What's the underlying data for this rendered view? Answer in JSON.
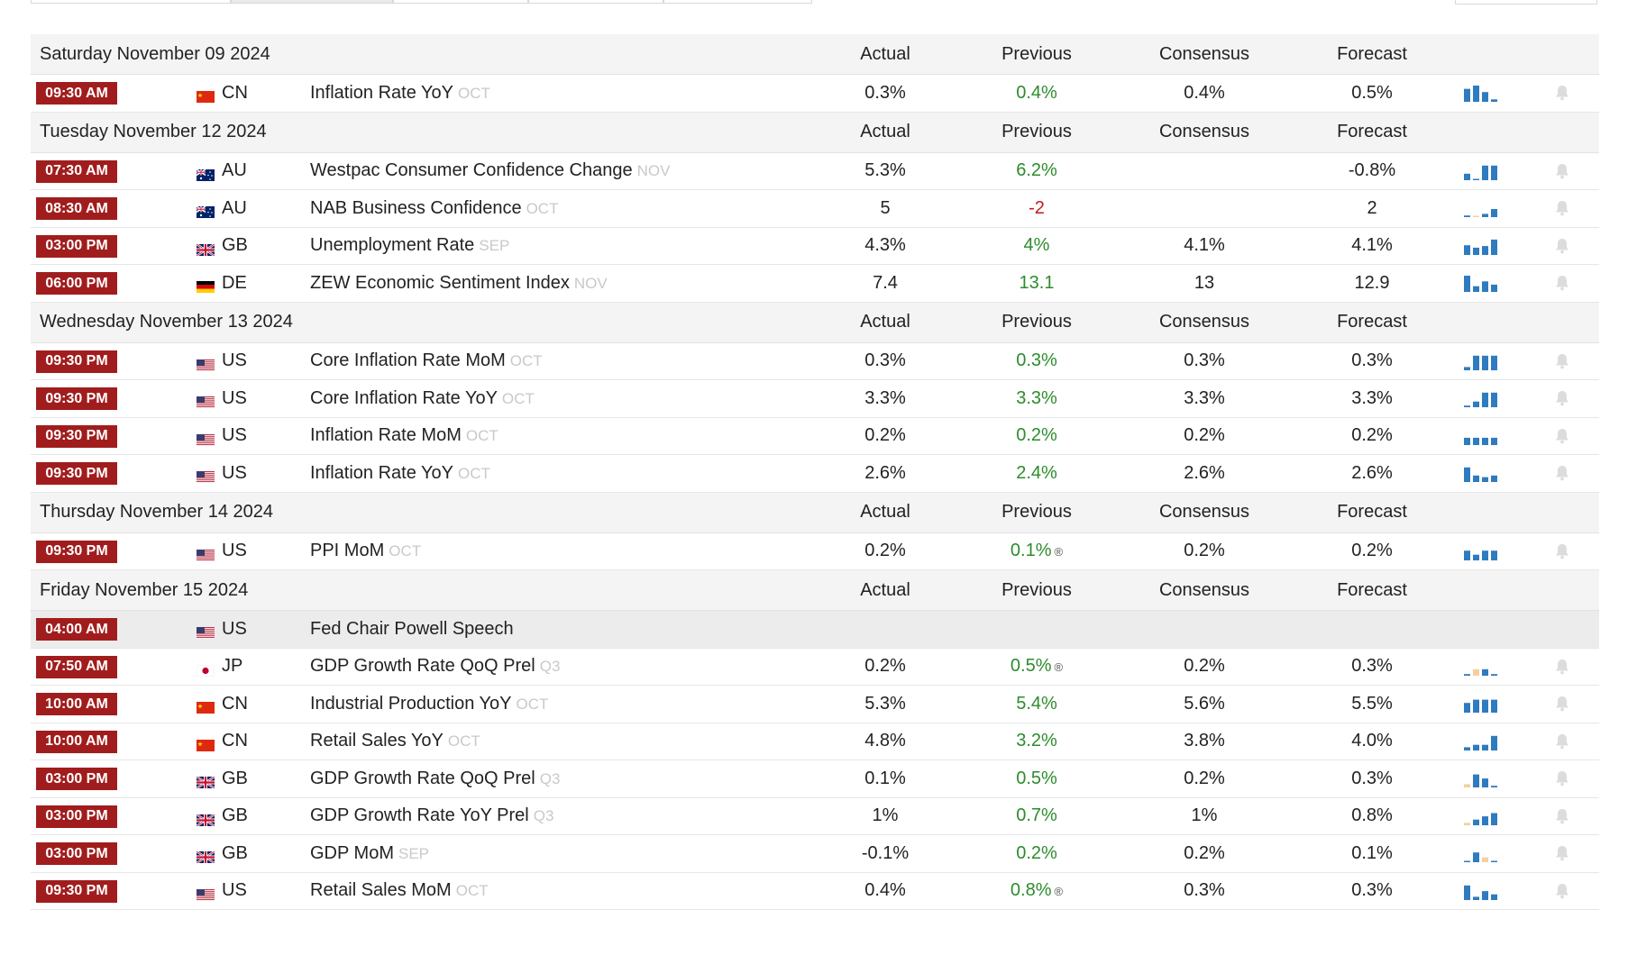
{
  "columns": {
    "actual": "Actual",
    "previous": "Previous",
    "consensus": "Consensus",
    "forecast": "Forecast"
  },
  "colors": {
    "time_badge": "#a11d1d",
    "positive": "#2c8c2c",
    "negative": "#c21b1b",
    "bar_blue": "#2f7bbf",
    "bar_light": "#f5cfa0"
  },
  "days": [
    {
      "date": "Saturday November 09 2024",
      "events": [
        {
          "time": "09:30 AM",
          "flag": "cn",
          "country": "CN",
          "event": "Inflation Rate YoY",
          "ref": "OCT",
          "actual": "0.3%",
          "previous": "0.4%",
          "prev_color": "green",
          "consensus": "0.4%",
          "forecast": "0.5%",
          "spark": [
            0.8,
            1.0,
            0.6,
            0.15
          ],
          "spark_neg": []
        }
      ]
    },
    {
      "date": "Tuesday November 12 2024",
      "events": [
        {
          "time": "07:30 AM",
          "flag": "au",
          "country": "AU",
          "event": "Westpac Consumer Confidence Change",
          "ref": "NOV",
          "actual": "5.3%",
          "previous": "6.2%",
          "prev_color": "green",
          "consensus": "",
          "forecast": "-0.8%",
          "spark": [
            0.4,
            0,
            0.9,
            0.9
          ],
          "spark_neg": []
        },
        {
          "time": "08:30 AM",
          "flag": "au",
          "country": "AU",
          "event": "NAB Business Confidence",
          "ref": "OCT",
          "actual": "5",
          "previous": "-2",
          "prev_color": "red",
          "consensus": "",
          "forecast": "2",
          "spark": [
            0.1,
            0,
            0.2,
            0.5
          ],
          "spark_neg": [
            1
          ]
        },
        {
          "time": "03:00 PM",
          "flag": "gb",
          "country": "GB",
          "event": "Unemployment Rate",
          "ref": "SEP",
          "actual": "4.3%",
          "previous": "4%",
          "prev_color": "green",
          "consensus": "4.1%",
          "forecast": "4.1%",
          "spark": [
            0.6,
            0.45,
            0.55,
            0.95
          ],
          "spark_neg": []
        },
        {
          "time": "06:00 PM",
          "flag": "de",
          "country": "DE",
          "event": "ZEW Economic Sentiment Index",
          "ref": "NOV",
          "actual": "7.4",
          "previous": "13.1",
          "prev_color": "green",
          "consensus": "13",
          "forecast": "12.9",
          "spark": [
            1.0,
            0.35,
            0.65,
            0.45
          ],
          "spark_neg": []
        }
      ]
    },
    {
      "date": "Wednesday November 13 2024",
      "events": [
        {
          "time": "09:30 PM",
          "flag": "us",
          "country": "US",
          "event": "Core Inflation Rate MoM",
          "ref": "OCT",
          "actual": "0.3%",
          "previous": "0.3%",
          "prev_color": "green",
          "consensus": "0.3%",
          "forecast": "0.3%",
          "spark": [
            0.2,
            0.9,
            0.9,
            0.9
          ],
          "spark_neg": []
        },
        {
          "time": "09:30 PM",
          "flag": "us",
          "country": "US",
          "event": "Core Inflation Rate YoY",
          "ref": "OCT",
          "actual": "3.3%",
          "previous": "3.3%",
          "prev_color": "green",
          "consensus": "3.3%",
          "forecast": "3.3%",
          "spark": [
            0.1,
            0.35,
            0.9,
            0.9
          ],
          "spark_neg": []
        },
        {
          "time": "09:30 PM",
          "flag": "us",
          "country": "US",
          "event": "Inflation Rate MoM",
          "ref": "OCT",
          "actual": "0.2%",
          "previous": "0.2%",
          "prev_color": "green",
          "consensus": "0.2%",
          "forecast": "0.2%",
          "spark": [
            0.45,
            0.45,
            0.45,
            0.45
          ],
          "spark_neg": []
        },
        {
          "time": "09:30 PM",
          "flag": "us",
          "country": "US",
          "event": "Inflation Rate YoY",
          "ref": "OCT",
          "actual": "2.6%",
          "previous": "2.4%",
          "prev_color": "green",
          "consensus": "2.6%",
          "forecast": "2.6%",
          "spark": [
            0.9,
            0.4,
            0.3,
            0.4
          ],
          "spark_neg": []
        }
      ]
    },
    {
      "date": "Thursday November 14 2024",
      "events": [
        {
          "time": "09:30 PM",
          "flag": "us",
          "country": "US",
          "event": "PPI MoM",
          "ref": "OCT",
          "actual": "0.2%",
          "previous": "0.1%",
          "prev_color": "green",
          "revised": true,
          "consensus": "0.2%",
          "forecast": "0.2%",
          "spark": [
            0.6,
            0.35,
            0.6,
            0.6
          ],
          "spark_neg": []
        }
      ]
    },
    {
      "date": "Friday November 15 2024",
      "events": [
        {
          "time": "04:00 AM",
          "flag": "us",
          "country": "US",
          "event": "Fed Chair Powell Speech",
          "ref": "",
          "actual": "",
          "previous": "",
          "prev_color": "green",
          "consensus": "",
          "forecast": "",
          "speech": true,
          "spark": [],
          "spark_neg": []
        },
        {
          "time": "07:50 AM",
          "flag": "jp",
          "country": "JP",
          "event": "GDP Growth Rate QoQ Prel",
          "ref": "Q3",
          "actual": "0.2%",
          "previous": "0.5%",
          "prev_color": "green",
          "revised": true,
          "consensus": "0.2%",
          "forecast": "0.3%",
          "spark": [
            0.1,
            0.4,
            0.4,
            0.1
          ],
          "spark_neg": [
            1
          ]
        },
        {
          "time": "10:00 AM",
          "flag": "cn",
          "country": "CN",
          "event": "Industrial Production YoY",
          "ref": "OCT",
          "actual": "5.3%",
          "previous": "5.4%",
          "prev_color": "green",
          "consensus": "5.6%",
          "forecast": "5.5%",
          "spark": [
            0.6,
            0.8,
            0.8,
            0.8
          ],
          "spark_neg": []
        },
        {
          "time": "10:00 AM",
          "flag": "cn",
          "country": "CN",
          "event": "Retail Sales YoY",
          "ref": "OCT",
          "actual": "4.8%",
          "previous": "3.2%",
          "prev_color": "green",
          "consensus": "3.8%",
          "forecast": "4.0%",
          "spark": [
            0.2,
            0.35,
            0.35,
            0.9
          ],
          "spark_neg": []
        },
        {
          "time": "03:00 PM",
          "flag": "gb",
          "country": "GB",
          "event": "GDP Growth Rate QoQ Prel",
          "ref": "Q3",
          "actual": "0.1%",
          "previous": "0.5%",
          "prev_color": "green",
          "consensus": "0.2%",
          "forecast": "0.3%",
          "spark": [
            0.2,
            0.8,
            0.55,
            0.1
          ],
          "spark_neg": [
            0
          ]
        },
        {
          "time": "03:00 PM",
          "flag": "gb",
          "country": "GB",
          "event": "GDP Growth Rate YoY Prel",
          "ref": "Q3",
          "actual": "1%",
          "previous": "0.7%",
          "prev_color": "green",
          "consensus": "1%",
          "forecast": "0.8%",
          "spark": [
            0.15,
            0.35,
            0.55,
            0.75
          ],
          "spark_neg": [
            0
          ]
        },
        {
          "time": "03:00 PM",
          "flag": "gb",
          "country": "GB",
          "event": "GDP MoM",
          "ref": "SEP",
          "actual": "-0.1%",
          "previous": "0.2%",
          "prev_color": "green",
          "consensus": "0.2%",
          "forecast": "0.1%",
          "spark": [
            0,
            0.6,
            0.3,
            0
          ],
          "spark_neg": [
            2
          ]
        },
        {
          "time": "09:30 PM",
          "flag": "us",
          "country": "US",
          "event": "Retail Sales MoM",
          "ref": "OCT",
          "actual": "0.4%",
          "previous": "0.8%",
          "prev_color": "green",
          "revised": true,
          "consensus": "0.3%",
          "forecast": "0.3%",
          "spark": [
            0.9,
            0.2,
            0.55,
            0.35
          ],
          "spark_neg": []
        }
      ]
    }
  ]
}
